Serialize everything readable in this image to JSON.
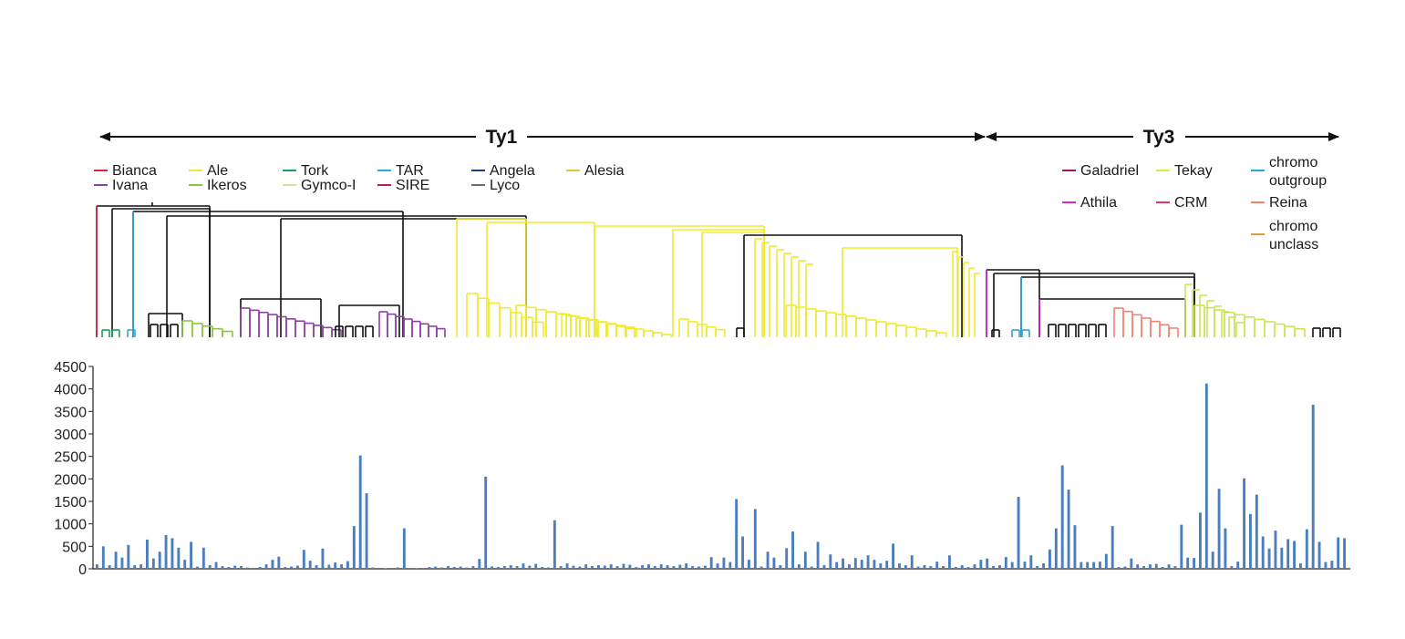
{
  "header": {
    "ty1_label": "Ty1",
    "ty3_label": "Ty3"
  },
  "legend_ty1": [
    {
      "label": "Bianca",
      "color": "#d7263d"
    },
    {
      "label": "Ivana",
      "color": "#8e3fa3"
    },
    {
      "label": "Ale",
      "color": "#f2ea2f"
    },
    {
      "label": "Ikeros",
      "color": "#8cc63f"
    },
    {
      "label": "Tork",
      "color": "#1f9e59"
    },
    {
      "label": "Gymco-I",
      "color": "#c9e79b"
    },
    {
      "label": "TAR",
      "color": "#29a9df"
    },
    {
      "label": "SIRE",
      "color": "#c2185b"
    },
    {
      "label": "Angela",
      "color": "#1f3a8a"
    },
    {
      "label": "Lyco",
      "color": "#6b6b6b"
    },
    {
      "label": "Alesia",
      "color": "#e8c62a"
    }
  ],
  "legend_ty3": [
    {
      "label": "Galadriel",
      "color": "#a0125a"
    },
    {
      "label": "Tekay",
      "color": "#d9ee3f"
    },
    {
      "label": "chromo\noutgroup",
      "color": "#2aa7d8"
    },
    {
      "label": "Athila",
      "color": "#d62ad6"
    },
    {
      "label": "CRM",
      "color": "#e0356a"
    },
    {
      "label": "Reina",
      "color": "#f2846e"
    },
    {
      "label": "chromo\nunclass",
      "color": "#e09a3e"
    }
  ],
  "tree_colors": {
    "black": "#111111",
    "bianca": "#d7263d",
    "tork": "#1f9e59",
    "tar": "#29a9df",
    "ikeros": "#8cc63f",
    "ivana": "#8e3fa3",
    "ale": "#f2ea2f",
    "athila": "#d62ad6",
    "chromo": "#2aa7d8",
    "reina": "#f2846e",
    "tekay": "#c7e65a"
  },
  "chart_data": {
    "type": "bar",
    "title": "",
    "xlabel": "",
    "ylabel": "",
    "ylim": [
      0,
      4500
    ],
    "yticks": [
      0,
      500,
      1000,
      1500,
      2000,
      2500,
      3000,
      3500,
      4000,
      4500
    ],
    "bar_color": "#4a7ebf",
    "values": [
      100,
      500,
      80,
      380,
      250,
      530,
      80,
      100,
      650,
      230,
      380,
      750,
      680,
      470,
      200,
      600,
      50,
      470,
      80,
      150,
      60,
      40,
      70,
      60,
      30,
      20,
      40,
      100,
      200,
      270,
      40,
      50,
      70,
      420,
      180,
      80,
      450,
      90,
      140,
      100,
      170,
      950,
      2520,
      1680,
      30,
      20,
      10,
      20,
      30,
      900,
      20,
      10,
      20,
      40,
      50,
      30,
      60,
      40,
      50,
      30,
      60,
      220,
      2050,
      50,
      40,
      60,
      80,
      60,
      120,
      70,
      110,
      40,
      30,
      1080,
      60,
      120,
      70,
      50,
      100,
      60,
      80,
      70,
      100,
      60,
      110,
      90,
      40,
      80,
      100,
      60,
      100,
      80,
      60,
      90,
      120,
      60,
      50,
      70,
      260,
      120,
      250,
      150,
      1550,
      720,
      200,
      1330,
      50,
      380,
      250,
      80,
      460,
      830,
      100,
      380,
      50,
      600,
      80,
      320,
      150,
      230,
      100,
      240,
      200,
      300,
      200,
      120,
      180,
      560,
      120,
      80,
      300,
      50,
      80,
      60,
      160,
      60,
      300,
      40,
      80,
      40,
      100,
      200,
      230,
      60,
      80,
      260,
      150,
      1600,
      160,
      300,
      60,
      120,
      430,
      900,
      2300,
      1760,
      970,
      150,
      150,
      150,
      160,
      330,
      950,
      40,
      50,
      230,
      100,
      60,
      100,
      110,
      40,
      100,
      60,
      980,
      250,
      240,
      1250,
      4120,
      380,
      1780,
      900,
      60,
      160,
      2010,
      1220,
      1650,
      720,
      450,
      850,
      470,
      660,
      620,
      120,
      880,
      3650,
      600,
      150,
      180,
      700,
      680
    ]
  }
}
